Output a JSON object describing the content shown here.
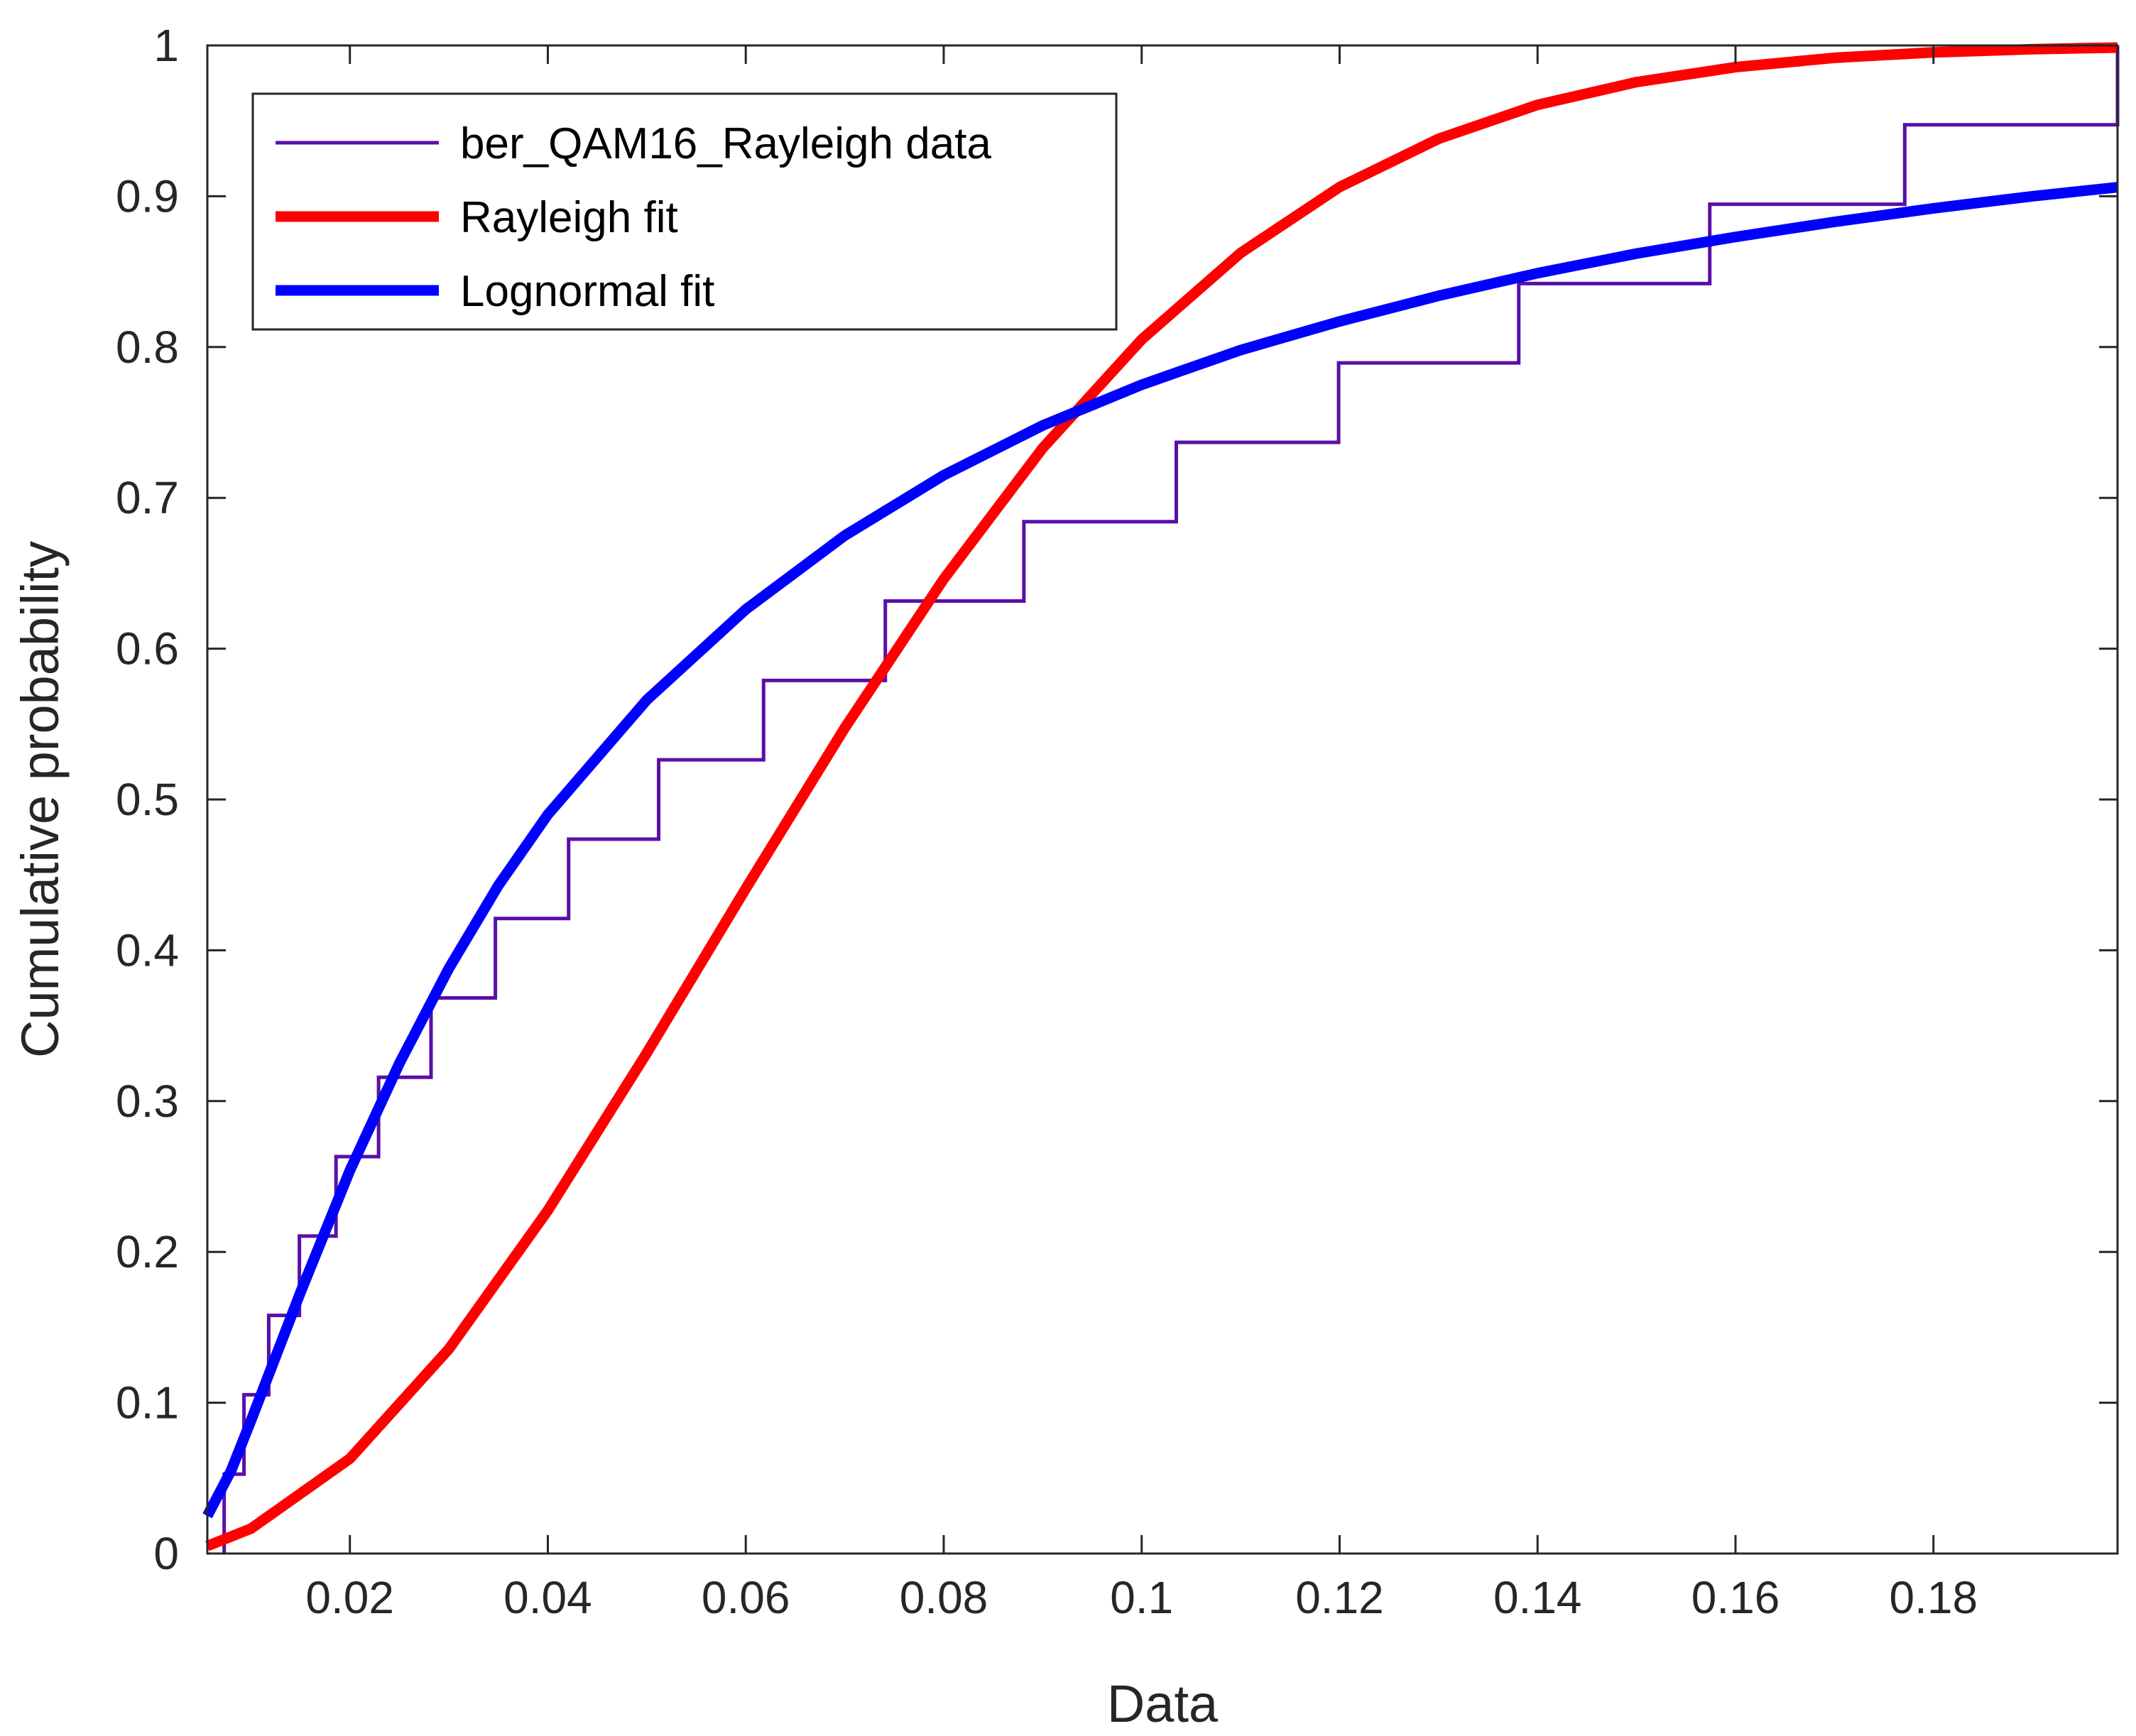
{
  "chart_data": {
    "type": "line",
    "title": "",
    "xlabel": "Data",
    "ylabel": "Cumulative probability",
    "xlim": [
      0.0056,
      0.1986
    ],
    "ylim": [
      0,
      1
    ],
    "xticks": [
      0.02,
      0.04,
      0.06,
      0.08,
      0.1,
      0.12,
      0.14,
      0.16,
      0.18
    ],
    "xtick_labels": [
      "0.02",
      "0.04",
      "0.06",
      "0.08",
      "0.1",
      "0.12",
      "0.14",
      "0.16",
      "0.18"
    ],
    "yticks": [
      0,
      0.1,
      0.2,
      0.3,
      0.4,
      0.5,
      0.6,
      0.7,
      0.8,
      0.9,
      1
    ],
    "ytick_labels": [
      "0",
      "0.1",
      "0.2",
      "0.3",
      "0.4",
      "0.5",
      "0.6",
      "0.7",
      "0.8",
      "0.9",
      "1"
    ],
    "grid": false,
    "legend_position": "top-left",
    "series": [
      {
        "name": "ber_QAM16_Rayleigh data",
        "kind": "stairs",
        "color": "#5a0fa8",
        "x": [
          0.0073,
          0.0093,
          0.0118,
          0.0149,
          0.0186,
          0.0229,
          0.0282,
          0.0347,
          0.0421,
          0.0512,
          0.0618,
          0.0741,
          0.0881,
          0.1035,
          0.1199,
          0.1381,
          0.1574,
          0.1771,
          0.1986
        ],
        "y": [
          0.0526,
          0.1053,
          0.1579,
          0.2105,
          0.2632,
          0.3158,
          0.3684,
          0.4211,
          0.4737,
          0.5263,
          0.5789,
          0.6316,
          0.6842,
          0.7368,
          0.7895,
          0.8421,
          0.8947,
          0.9474,
          1.0
        ]
      },
      {
        "name": "Rayleigh fit",
        "kind": "line",
        "color": "#ff0000",
        "x": [
          0.0056,
          0.01,
          0.02,
          0.03,
          0.04,
          0.05,
          0.06,
          0.07,
          0.08,
          0.09,
          0.1,
          0.11,
          0.12,
          0.13,
          0.14,
          0.15,
          0.16,
          0.17,
          0.18,
          0.19,
          0.1986
        ],
        "y": [
          0.005,
          0.0165,
          0.0629,
          0.1356,
          0.2275,
          0.3319,
          0.4409,
          0.5474,
          0.6462,
          0.733,
          0.805,
          0.8624,
          0.9061,
          0.9381,
          0.9606,
          0.9757,
          0.9856,
          0.9918,
          0.9954,
          0.9975,
          0.9986
        ]
      },
      {
        "name": "Lognormal fit",
        "kind": "line",
        "color": "#0000ff",
        "x": [
          0.0056,
          0.008,
          0.01,
          0.012,
          0.015,
          0.02,
          0.025,
          0.03,
          0.035,
          0.04,
          0.05,
          0.06,
          0.07,
          0.08,
          0.09,
          0.1,
          0.11,
          0.12,
          0.13,
          0.14,
          0.15,
          0.16,
          0.17,
          0.18,
          0.19,
          0.1986
        ],
        "y": [
          0.025,
          0.055,
          0.088,
          0.122,
          0.173,
          0.254,
          0.325,
          0.388,
          0.443,
          0.49,
          0.566,
          0.626,
          0.675,
          0.715,
          0.748,
          0.775,
          0.798,
          0.817,
          0.834,
          0.849,
          0.862,
          0.873,
          0.883,
          0.892,
          0.9,
          0.906
        ]
      }
    ]
  }
}
